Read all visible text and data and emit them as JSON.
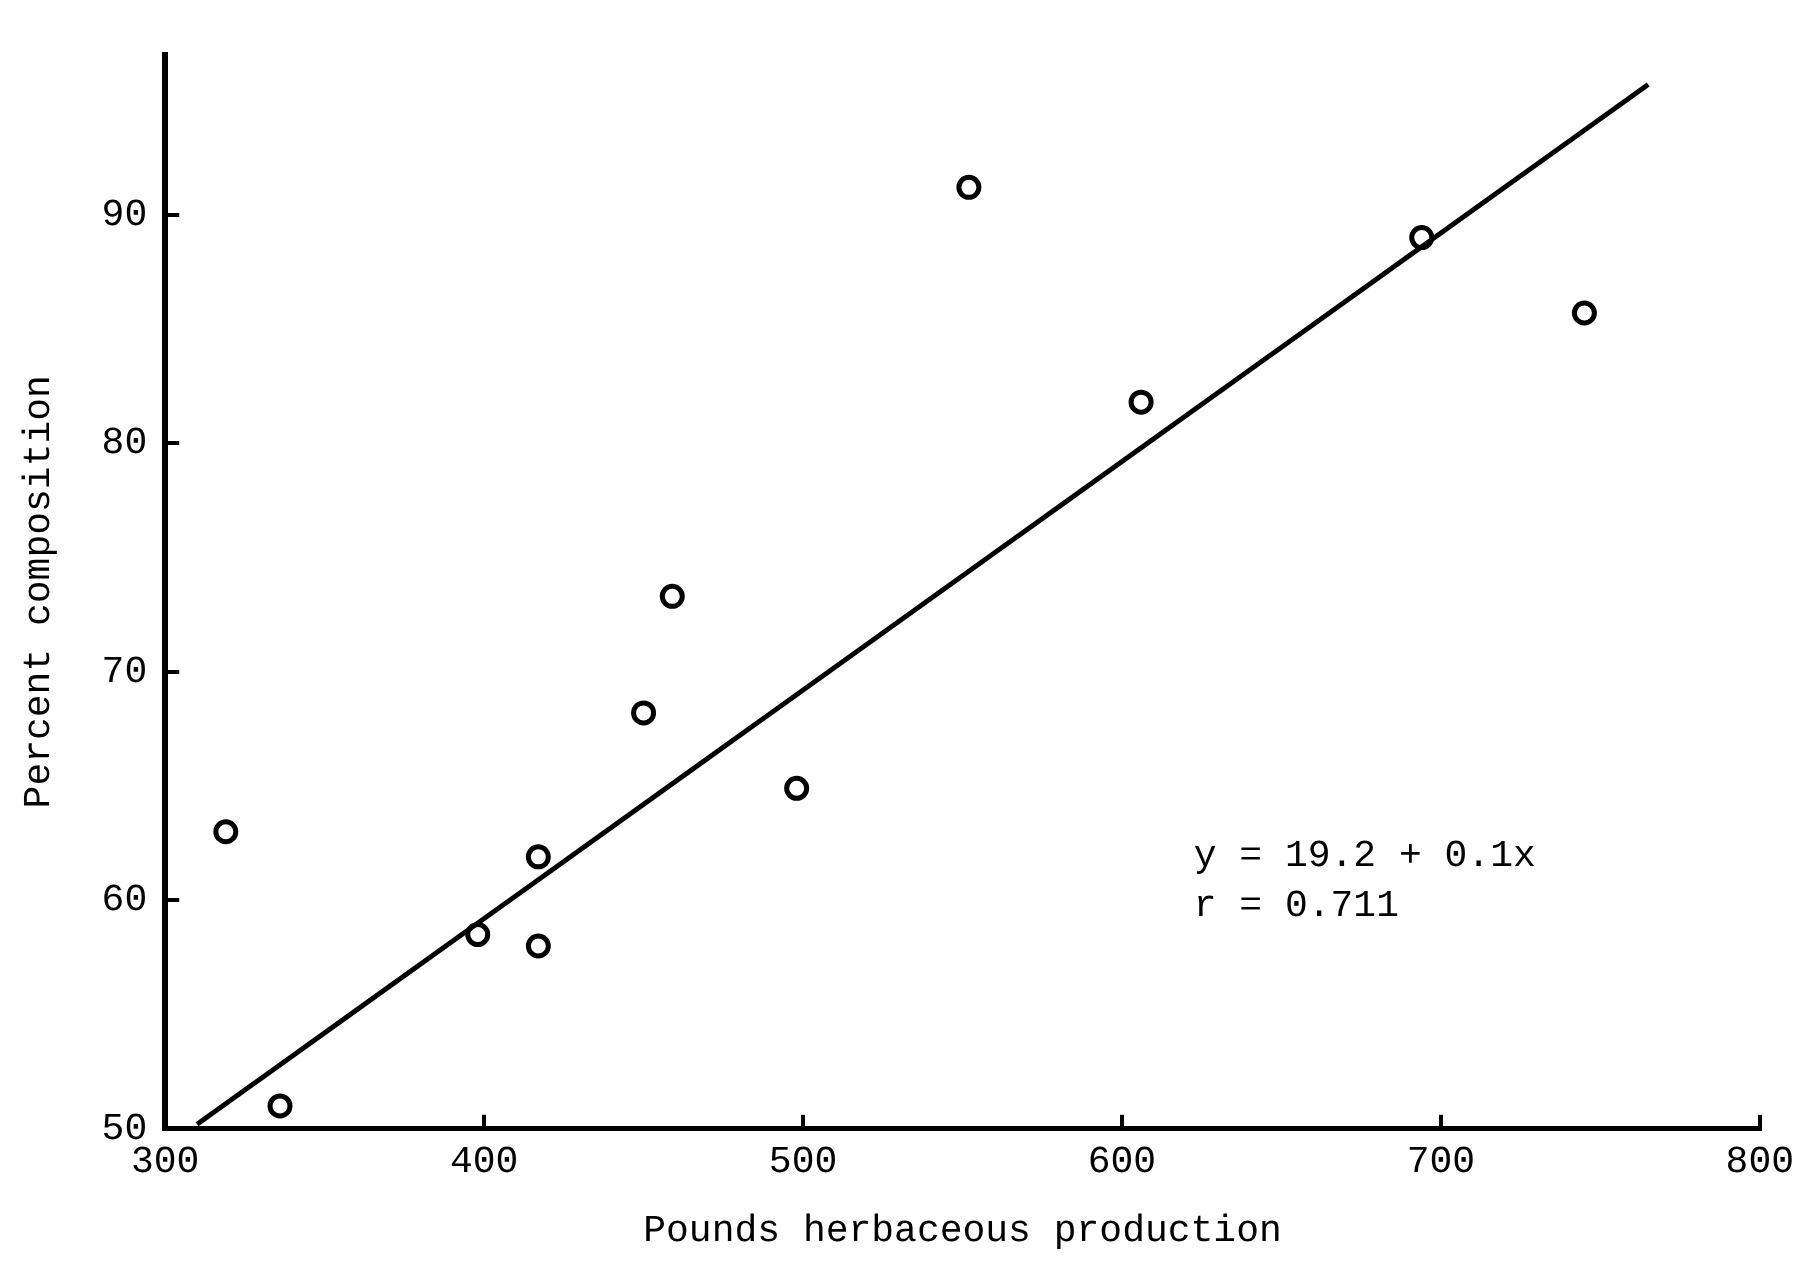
{
  "chart_data": {
    "type": "scatter",
    "xlabel": "Pounds herbaceous production",
    "ylabel": "Percent composition",
    "xlim": [
      300,
      800
    ],
    "xticks": [
      300,
      400,
      500,
      600,
      700,
      800
    ],
    "ylim": [
      50,
      97
    ],
    "yticks": [
      50,
      60,
      70,
      80,
      90
    ],
    "grid": false,
    "legend": false,
    "marker": "circle",
    "series": [
      {
        "color": "#000000",
        "x": [
          319,
          336,
          398,
          417,
          417,
          450,
          459,
          498,
          552,
          606,
          694,
          745
        ],
        "values": [
          63,
          51,
          58.5,
          61.9,
          58,
          68.2,
          73.3,
          64.9,
          91.2,
          81.8,
          89,
          85.7
        ]
      },
      {
        "type": "line",
        "color": "#000000",
        "marker": "none",
        "x": [
          310,
          765
        ],
        "values": [
          50.2,
          95.7
        ]
      }
    ],
    "annotations": [
      "y = 19.2 + 0.1x",
      "r = 0.711"
    ]
  }
}
